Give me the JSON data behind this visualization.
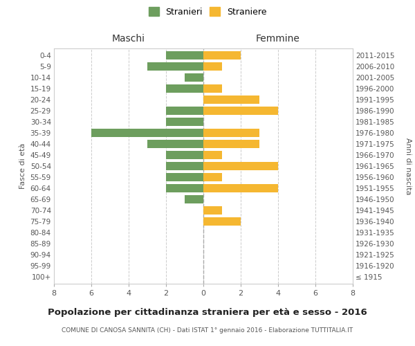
{
  "age_groups": [
    "100+",
    "95-99",
    "90-94",
    "85-89",
    "80-84",
    "75-79",
    "70-74",
    "65-69",
    "60-64",
    "55-59",
    "50-54",
    "45-49",
    "40-44",
    "35-39",
    "30-34",
    "25-29",
    "20-24",
    "15-19",
    "10-14",
    "5-9",
    "0-4"
  ],
  "birth_years": [
    "≤ 1915",
    "1916-1920",
    "1921-1925",
    "1926-1930",
    "1931-1935",
    "1936-1940",
    "1941-1945",
    "1946-1950",
    "1951-1955",
    "1956-1960",
    "1961-1965",
    "1966-1970",
    "1971-1975",
    "1976-1980",
    "1981-1985",
    "1986-1990",
    "1991-1995",
    "1996-2000",
    "2001-2005",
    "2006-2010",
    "2011-2015"
  ],
  "maschi": [
    0,
    0,
    0,
    0,
    0,
    0,
    0,
    1,
    2,
    2,
    2,
    2,
    3,
    6,
    2,
    2,
    0,
    2,
    1,
    3,
    2
  ],
  "femmine": [
    0,
    0,
    0,
    0,
    0,
    2,
    1,
    0,
    4,
    1,
    4,
    1,
    3,
    3,
    0,
    4,
    3,
    1,
    0,
    1,
    2
  ],
  "maschi_color": "#6d9e5e",
  "femmine_color": "#f5b731",
  "title": "Popolazione per cittadinanza straniera per età e sesso - 2016",
  "subtitle": "COMUNE DI CANOSA SANNITA (CH) - Dati ISTAT 1° gennaio 2016 - Elaborazione TUTTITALIA.IT",
  "xlabel_left": "Maschi",
  "xlabel_right": "Femmine",
  "ylabel_left": "Fasce di età",
  "ylabel_right": "Anni di nascita",
  "legend_maschi": "Stranieri",
  "legend_femmine": "Straniere",
  "xlim": 8,
  "xticks": [
    -8,
    -6,
    -4,
    -2,
    0,
    2,
    4,
    6,
    8
  ],
  "xtick_labels": [
    "8",
    "6",
    "4",
    "2",
    "0",
    "2",
    "4",
    "6",
    "8"
  ],
  "background_color": "#ffffff",
  "grid_color": "#cccccc",
  "bar_height": 0.75
}
